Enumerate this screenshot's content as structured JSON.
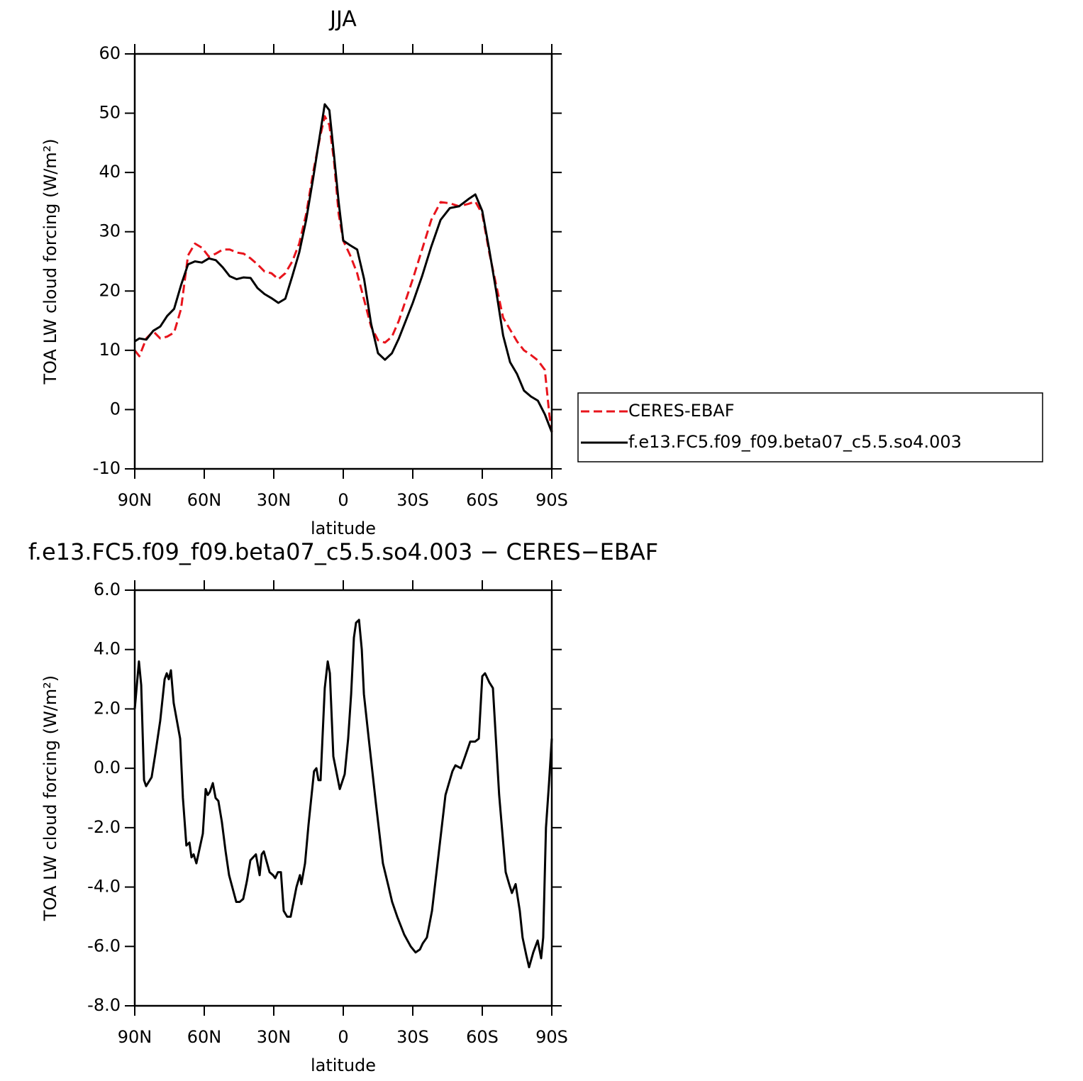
{
  "chart_data": [
    {
      "type": "line",
      "title": "JJA",
      "xlabel": "latitude",
      "ylabel": "TOA LW cloud forcing (W/m²)",
      "x": [
        90,
        88,
        85,
        82,
        79,
        76,
        73,
        70,
        67,
        64,
        61,
        58,
        55,
        52,
        49,
        46,
        43,
        40,
        37,
        34,
        31,
        28,
        25,
        22,
        19,
        16,
        13,
        10,
        8,
        6,
        4,
        2,
        0,
        -3,
        -6,
        -9,
        -12,
        -15,
        -18,
        -21,
        -24,
        -27,
        -30,
        -34,
        -38,
        -42,
        -46,
        -50,
        -54,
        -57,
        -60,
        -63,
        -66,
        -69,
        -72,
        -75,
        -78,
        -81,
        -84,
        -87,
        -89,
        -90
      ],
      "series": [
        {
          "name": "CERES-EBAF",
          "color": "#e8141c",
          "linestyle": "dashed",
          "values": [
            10,
            9,
            12,
            13.2,
            12,
            12.3,
            13,
            17,
            26,
            28,
            27.3,
            25.8,
            26.3,
            27,
            27,
            26.5,
            26.3,
            25.5,
            24.5,
            23.3,
            23,
            22,
            23,
            25,
            28,
            33,
            40,
            46,
            49.5,
            48,
            42,
            33,
            28.5,
            26,
            23,
            18.5,
            14,
            11.7,
            11.3,
            12.3,
            15,
            18.5,
            22,
            27,
            32,
            35,
            34.8,
            34.3,
            34.7,
            35.1,
            33,
            26.5,
            21,
            15.5,
            13.5,
            11.5,
            10,
            9.2,
            8.3,
            6.7,
            -1,
            -3.8
          ]
        },
        {
          "name": "f.e13.FC5.f09_f09.beta07_c5.5.so4.003",
          "color": "#000000",
          "linestyle": "solid",
          "values": [
            11.5,
            12,
            11.8,
            13.3,
            14,
            15.8,
            17,
            21,
            24.5,
            25,
            24.8,
            25.5,
            25.2,
            24,
            22.5,
            22,
            22.3,
            22.2,
            20.5,
            19.5,
            18.8,
            18,
            18.7,
            22.5,
            26.5,
            32,
            39,
            46.5,
            51.5,
            50.5,
            43,
            35,
            28.5,
            27.7,
            27,
            22,
            14.5,
            9.5,
            8.4,
            9.5,
            12,
            15,
            18,
            22.5,
            27.5,
            32,
            34,
            34.3,
            35.5,
            36.3,
            33.5,
            27,
            20,
            12.5,
            8,
            6,
            3.2,
            2.2,
            1.5,
            -0.8,
            -2.8,
            -3.8
          ]
        }
      ],
      "xlim": [
        90,
        -90
      ],
      "xticks": [
        {
          "value": 90,
          "label": "90N"
        },
        {
          "value": 60,
          "label": "60N"
        },
        {
          "value": 30,
          "label": "30N"
        },
        0,
        {
          "value": -30,
          "label": "30S"
        },
        {
          "value": -60,
          "label": "60S"
        },
        {
          "value": -90,
          "label": "90S"
        }
      ],
      "ylim": [
        -10,
        60
      ],
      "yticks": [
        -10,
        0,
        10,
        20,
        30,
        40,
        50,
        60
      ],
      "legend": "right"
    },
    {
      "type": "line",
      "title": "f.e13.FC5.f09_f09.beta07_c5.5.so4.003 − CERES−EBAF",
      "xlabel": "latitude",
      "ylabel": "TOA LW cloud forcing (W/m²)",
      "x": [
        90,
        88.2,
        87.2,
        86,
        85.1,
        82.7,
        81.1,
        79,
        77.1,
        76.2,
        75.3,
        74.4,
        73.2,
        70.4,
        69.2,
        67.7,
        66.4,
        65.5,
        64.6,
        63.4,
        60.6,
        59.4,
        58.5,
        57.6,
        56.3,
        55.1,
        53.9,
        52.4,
        50.8,
        49.3,
        46.2,
        44.7,
        43.2,
        41.6,
        40.1,
        38.9,
        37.7,
        36.1,
        35.2,
        34.3,
        31.8,
        30.3,
        29.4,
        28.2,
        26.9,
        25.7,
        24.2,
        22.7,
        20.2,
        18.7,
        18.1,
        16.5,
        15,
        12.6,
        11.6,
        10.7,
        9.8,
        8,
        6.7,
        5.8,
        4.3,
        1.5,
        -0.6,
        -2.1,
        -3.4,
        -4.6,
        -5.5,
        -6.8,
        -8,
        -8.9,
        -11,
        -14.1,
        -17.1,
        -19.6,
        -21.1,
        -23.3,
        -26.3,
        -29.1,
        -31.2,
        -33.1,
        -34.3,
        -36.1,
        -38.3,
        -41,
        -44.1,
        -47.1,
        -48.4,
        -50.8,
        -52.6,
        -54.8,
        -56.9,
        -58.5,
        -60,
        -61.2,
        -63,
        -64.6,
        -67.3,
        -70.1,
        -71.6,
        -72.8,
        -74.4,
        -76.2,
        -77.4,
        -79,
        -80.2,
        -82,
        -83.9,
        -85.4,
        -86.3,
        -87.5,
        -88.8,
        -90
      ],
      "values": [
        2.0,
        3.6,
        2.8,
        -0.4,
        -0.6,
        -0.3,
        0.5,
        1.6,
        3.0,
        3.2,
        3.0,
        3.3,
        2.2,
        1.0,
        -1.0,
        -2.6,
        -2.5,
        -3.0,
        -2.9,
        -3.2,
        -2.2,
        -0.7,
        -0.9,
        -0.8,
        -0.5,
        -1.0,
        -1.1,
        -1.8,
        -2.8,
        -3.6,
        -4.5,
        -4.5,
        -4.4,
        -3.8,
        -3.1,
        -3.0,
        -2.9,
        -3.6,
        -2.9,
        -2.8,
        -3.5,
        -3.6,
        -3.7,
        -3.5,
        -3.5,
        -4.8,
        -5.0,
        -5.0,
        -4.0,
        -3.6,
        -3.9,
        -3.2,
        -1.9,
        -0.1,
        0.0,
        -0.4,
        -0.4,
        2.7,
        3.6,
        3.2,
        0.4,
        -0.7,
        -0.2,
        1.0,
        2.5,
        4.4,
        4.9,
        5.0,
        4.0,
        2.5,
        1.0,
        -1.2,
        -3.2,
        -4.0,
        -4.5,
        -5.0,
        -5.6,
        -6.0,
        -6.2,
        -6.1,
        -5.9,
        -5.7,
        -4.8,
        -3.0,
        -0.9,
        -0.1,
        0.1,
        0.0,
        0.4,
        0.9,
        0.9,
        1.0,
        3.1,
        3.2,
        2.9,
        2.7,
        -0.9,
        -3.5,
        -3.9,
        -4.2,
        -3.9,
        -4.8,
        -5.7,
        -6.3,
        -6.7,
        -6.2,
        -5.8,
        -6.4,
        -5.7,
        -2.0,
        -0.5,
        1.0
      ],
      "color": "#000000",
      "xlim": [
        90,
        -90
      ],
      "xticks": [
        {
          "value": 90,
          "label": "90N"
        },
        {
          "value": 60,
          "label": "60N"
        },
        {
          "value": 30,
          "label": "30N"
        },
        0,
        {
          "value": -30,
          "label": "30S"
        },
        {
          "value": -60,
          "label": "60S"
        },
        {
          "value": -90,
          "label": "90S"
        }
      ],
      "ylim": [
        -8,
        6
      ],
      "yticks": [
        {
          "value": -8,
          "label": "-8.0"
        },
        {
          "value": -6,
          "label": "-6.0"
        },
        {
          "value": -4,
          "label": "-4.0"
        },
        {
          "value": -2,
          "label": "-2.0"
        },
        {
          "value": 0,
          "label": "0.0"
        },
        {
          "value": 2,
          "label": "2.0"
        },
        {
          "value": 4,
          "label": "4.0"
        },
        {
          "value": 6,
          "label": "6.0"
        }
      ]
    }
  ]
}
